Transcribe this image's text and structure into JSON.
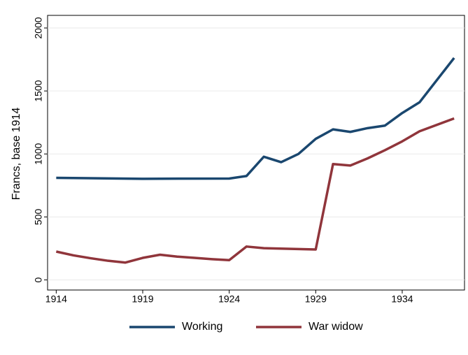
{
  "chart_data": {
    "type": "line",
    "y_label": "Francs, base 1914",
    "series": [
      {
        "name": "Working",
        "color": "#1a476f",
        "x": [
          1914,
          1919,
          1924,
          1925,
          1926,
          1927,
          1928,
          1929,
          1930,
          1931,
          1932,
          1933,
          1934,
          1935,
          1937
        ],
        "values": [
          810,
          803,
          805,
          825,
          978,
          935,
          1000,
          1120,
          1195,
          1175,
          1205,
          1225,
          1325,
          1410,
          1762
        ]
      },
      {
        "name": "War widow",
        "color": "#90353b",
        "x": [
          1914,
          1915,
          1916,
          1917,
          1918,
          1919,
          1920,
          1921,
          1922,
          1923,
          1924,
          1925,
          1926,
          1929,
          1930,
          1931,
          1932,
          1933,
          1934,
          1935,
          1937
        ],
        "values": [
          225,
          195,
          172,
          152,
          138,
          175,
          200,
          185,
          175,
          165,
          157,
          265,
          252,
          242,
          920,
          908,
          965,
          1030,
          1100,
          1180,
          1282
        ]
      }
    ],
    "xlim": [
      1913.5,
      1937.6
    ],
    "xticks": [
      1914,
      1919,
      1924,
      1929,
      1934
    ],
    "ylim": [
      -80,
      2100
    ],
    "yticks": [
      0,
      500,
      1000,
      1500,
      2000
    ],
    "grid": true,
    "legend": "bottom"
  }
}
